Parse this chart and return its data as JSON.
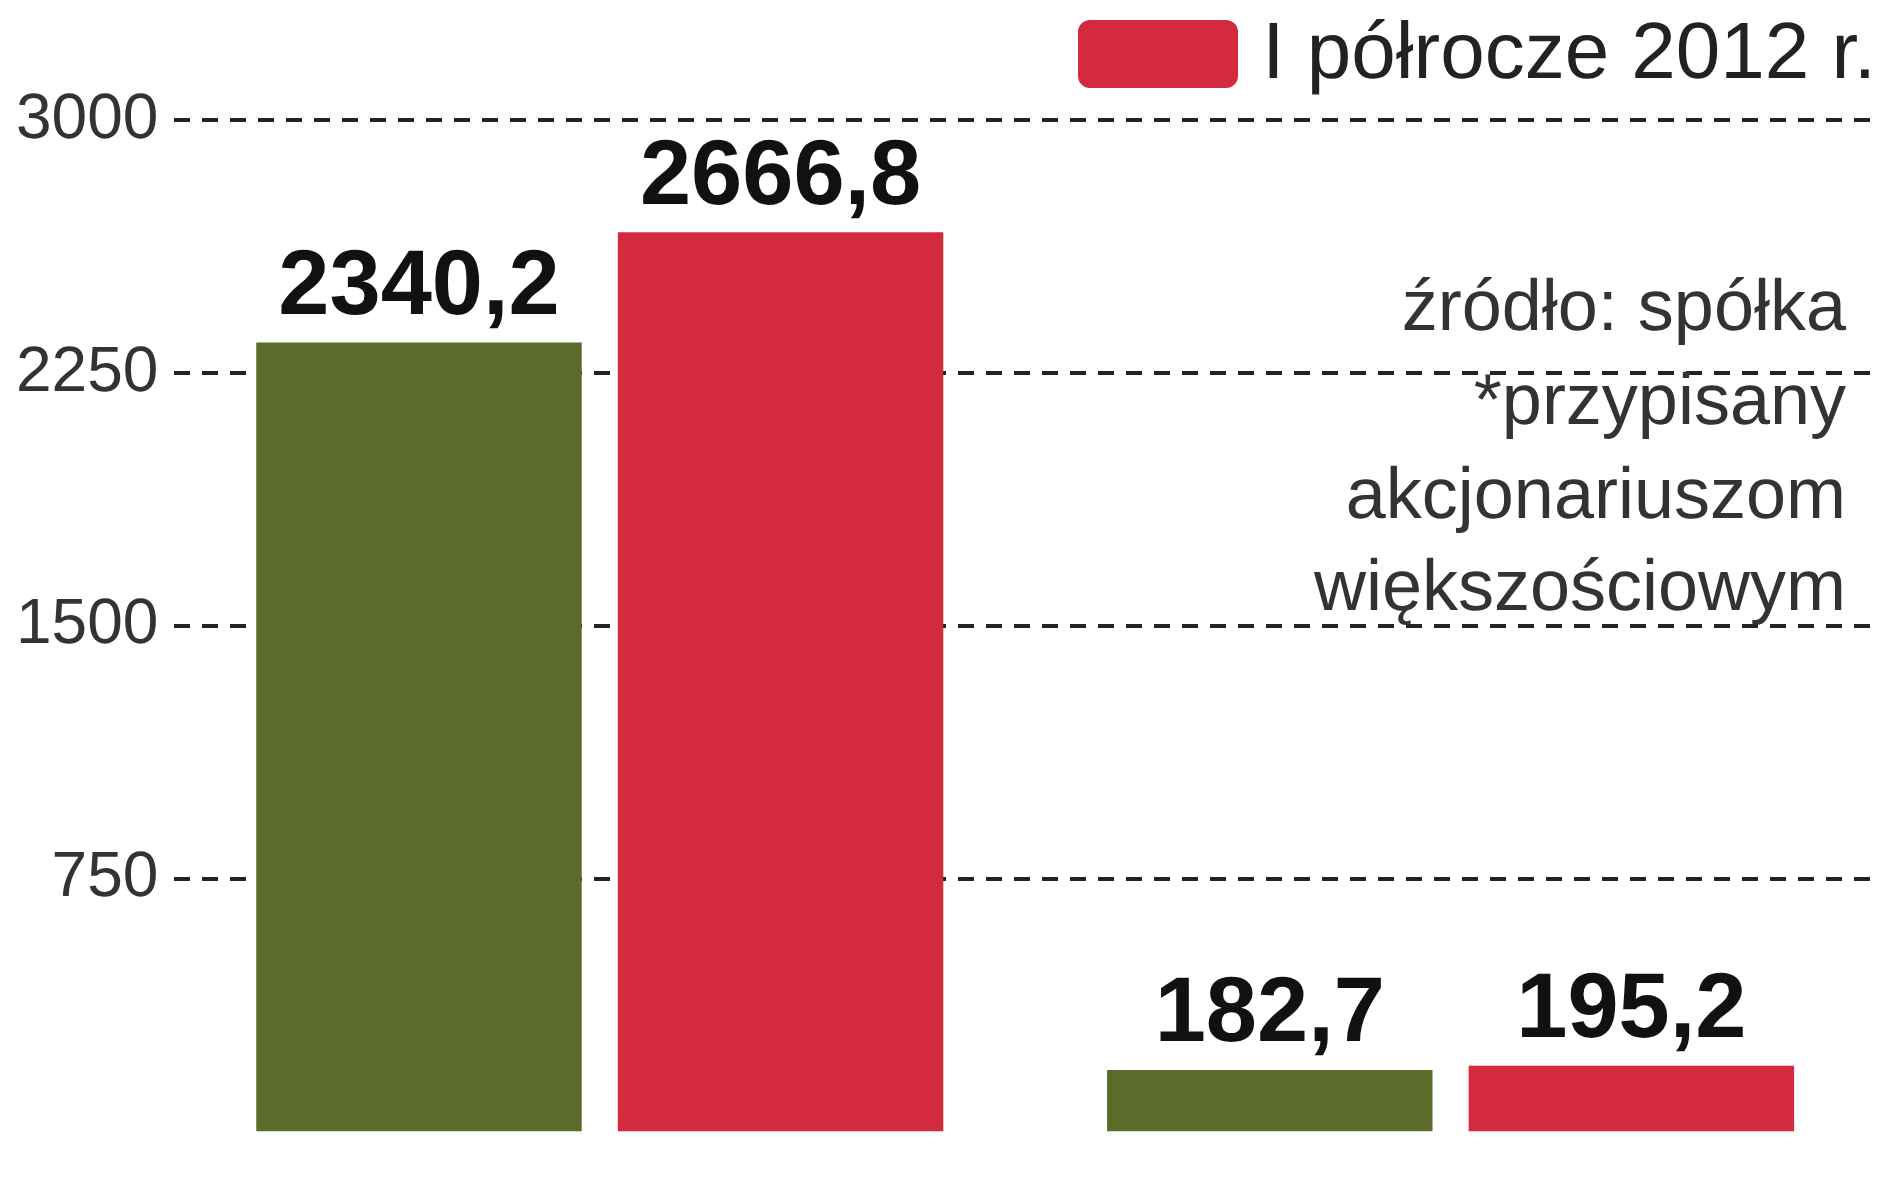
{
  "chart_data": {
    "type": "bar",
    "categories": [
      null,
      null
    ],
    "series": [
      {
        "color": "#5a6b2a",
        "values": [
          2340.2,
          182.7
        ],
        "value_labels": [
          "2340,2",
          "182,7"
        ]
      },
      {
        "name": "I półrocze 2012 r.",
        "color": "#d42a40",
        "values": [
          2666.8,
          195.2
        ],
        "value_labels": [
          "2666,8",
          "195,2"
        ]
      }
    ],
    "ylim": [
      0,
      3000
    ],
    "yticks": [
      750,
      1500,
      2250,
      3000
    ],
    "grid": "y",
    "legend": "top right",
    "tick_labels": "y",
    "annotations": [
      "źródło: spółka",
      "*przypisany akcjonariuszom większościowym"
    ]
  }
}
